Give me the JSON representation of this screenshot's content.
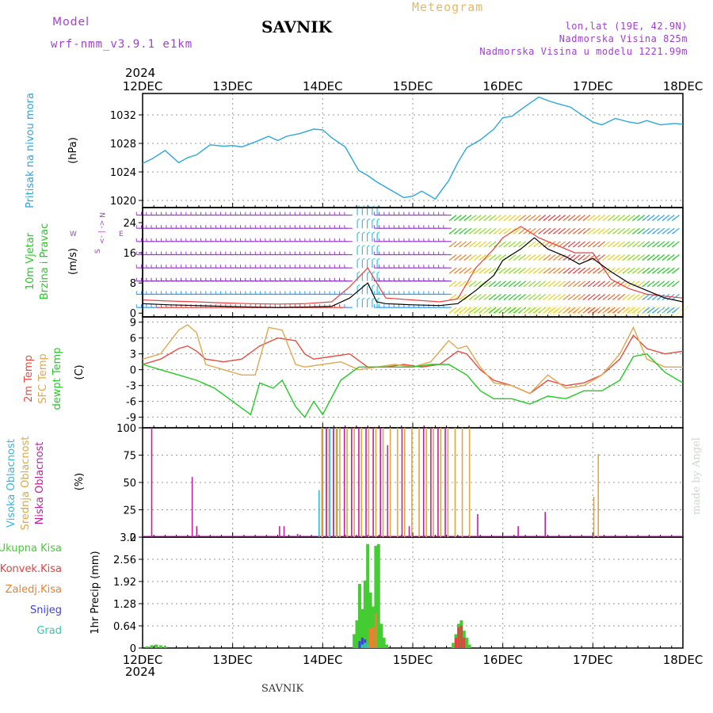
{
  "header": {
    "model_label": "Model",
    "model_version": "wrf-nmm_v3.9.1 e1km",
    "station": "SAVNIK",
    "title": "Meteogram",
    "location_coords": "lon,lat (19E, 42.9N)",
    "elevation": "Nadmorska Visina 825m",
    "model_elevation": "Nadmorska Visina u modelu 1221.99m"
  },
  "footer": {
    "station": "SAVNIK"
  },
  "watermark": "made by Angel",
  "time_axis": {
    "year_top": "2024",
    "year_bottom": "2024",
    "ticks": [
      "12DEC",
      "13DEC",
      "14DEC",
      "15DEC",
      "16DEC",
      "17DEC",
      "18DEC"
    ]
  },
  "colors": {
    "pressure": "#2aa6e0",
    "temp2m": "#e84c40",
    "sfc_temp": "#e0a850",
    "dewpoint": "#22cc22",
    "high_cloud": "#30b8e8",
    "mid_cloud": "#e0a840",
    "low_cloud": "#c020a0",
    "total_precip": "#44cc33",
    "conv_precip": "#e84040",
    "frz_precip": "#f08030",
    "snow": "#4040e0",
    "graupel": "#30c8b0",
    "wind_purple": "#a040d0"
  },
  "chart_data": [
    {
      "type": "line",
      "panel": "pressure",
      "ylabel_left": "Pritisak na nivou mora",
      "unit": "(hPa)",
      "ylim": [
        1019,
        1035
      ],
      "yticks": [
        "1020",
        "1024",
        "1028",
        "1032"
      ],
      "grid": true,
      "series": [
        {
          "name": "Pritisak na nivou mora",
          "x": [
            0,
            0.1,
            0.25,
            0.4,
            0.5,
            0.6,
            0.75,
            0.9,
            1.0,
            1.1,
            1.25,
            1.4,
            1.5,
            1.6,
            1.75,
            1.9,
            2.0,
            2.1,
            2.25,
            2.4,
            2.5,
            2.6,
            2.75,
            2.9,
            3.0,
            3.1,
            3.25,
            3.4,
            3.5,
            3.6,
            3.75,
            3.9,
            4.0,
            4.1,
            4.25,
            4.4,
            4.5,
            4.6,
            4.75,
            4.9,
            5.0,
            5.1,
            5.25,
            5.4,
            5.5,
            5.6,
            5.75,
            5.9,
            6.0
          ],
          "values": [
            1025.2,
            1025.8,
            1027.0,
            1025.3,
            1026.0,
            1026.4,
            1027.8,
            1027.6,
            1027.7,
            1027.5,
            1028.2,
            1029.0,
            1028.4,
            1029.0,
            1029.4,
            1030.0,
            1029.9,
            1028.8,
            1027.5,
            1024.2,
            1023.5,
            1022.6,
            1021.5,
            1020.4,
            1020.6,
            1021.3,
            1020.2,
            1022.8,
            1025.3,
            1027.4,
            1028.5,
            1030.0,
            1031.6,
            1031.8,
            1033.2,
            1034.5,
            1034.0,
            1033.6,
            1033.1,
            1031.8,
            1031.0,
            1030.6,
            1031.5,
            1031.0,
            1030.8,
            1031.2,
            1030.6,
            1030.8,
            1030.7
          ]
        }
      ]
    },
    {
      "type": "line",
      "panel": "wind",
      "ylabel_left": [
        "10m Vjetar",
        "Brzina i Pravac"
      ],
      "unit": "(m/s)",
      "compass": {
        "north": "N",
        "south": "S",
        "west": "W",
        "east": "E"
      },
      "ylim": [
        -1,
        28
      ],
      "yticks": [
        "0",
        "8",
        "16",
        "24"
      ],
      "series": [
        {
          "name": "Brzina",
          "x": [
            0,
            0.3,
            0.6,
            0.9,
            1.2,
            1.5,
            1.8,
            2.1,
            2.3,
            2.5,
            2.6,
            2.7,
            3.0,
            3.3,
            3.5,
            3.7,
            3.9,
            4.0,
            4.2,
            4.35,
            4.5,
            4.7,
            4.85,
            5.0,
            5.2,
            5.4,
            5.6,
            5.8,
            6.0
          ],
          "values": [
            2.5,
            2.2,
            2.0,
            1.8,
            1.6,
            1.5,
            1.6,
            1.8,
            4.0,
            8.0,
            3.0,
            2.5,
            2.2,
            2.0,
            2.5,
            6.0,
            10.0,
            14.0,
            17.0,
            20.0,
            17.0,
            15.0,
            13.0,
            14.5,
            11.0,
            8.0,
            6.0,
            4.0,
            3.0
          ]
        },
        {
          "name": "Udari",
          "x": [
            0,
            0.3,
            0.6,
            0.9,
            1.2,
            1.5,
            1.8,
            2.1,
            2.3,
            2.5,
            2.7,
            3.0,
            3.3,
            3.5,
            3.7,
            3.9,
            4.0,
            4.2,
            4.4,
            4.6,
            4.8,
            5.0,
            5.2,
            5.4,
            5.6,
            5.8,
            6.0
          ],
          "values": [
            3.5,
            3.2,
            3.0,
            2.7,
            2.5,
            2.4,
            2.5,
            3.0,
            7.0,
            12.0,
            4.0,
            3.5,
            3.0,
            3.8,
            12.0,
            17.0,
            20.0,
            23.0,
            20.0,
            18.0,
            16.0,
            16.0,
            9.0,
            6.5,
            5.0,
            4.5,
            4.0
          ]
        }
      ]
    },
    {
      "type": "line",
      "panel": "temperature",
      "ylabel_left": [
        "2m Temp",
        "SFC Temp",
        "dewpt Temp"
      ],
      "unit": "(C)",
      "ylim": [
        -11,
        10
      ],
      "yticks": [
        "-9",
        "-6",
        "-3",
        "0",
        "3",
        "6",
        "9"
      ],
      "grid": true,
      "series": [
        {
          "name": "2m Temp",
          "x": [
            0,
            0.2,
            0.4,
            0.5,
            0.6,
            0.7,
            0.9,
            1.1,
            1.3,
            1.5,
            1.7,
            1.8,
            1.9,
            2.1,
            2.3,
            2.5,
            2.7,
            2.9,
            3.1,
            3.3,
            3.5,
            3.6,
            3.75,
            3.9,
            4.1,
            4.3,
            4.5,
            4.7,
            4.9,
            5.1,
            5.3,
            5.45,
            5.6,
            5.8,
            6.0
          ],
          "values": [
            1.0,
            2.0,
            4.0,
            4.5,
            3.5,
            2.0,
            1.5,
            2.0,
            4.5,
            6.0,
            5.5,
            3.0,
            2.0,
            2.5,
            3.0,
            0.5,
            0.5,
            1.0,
            0.5,
            1.0,
            3.5,
            3.0,
            0.0,
            -2.0,
            -3.0,
            -4.5,
            -2.0,
            -3.0,
            -2.5,
            -1.0,
            2.0,
            6.5,
            4.0,
            3.0,
            3.5
          ]
        },
        {
          "name": "SFC Temp",
          "x": [
            0,
            0.2,
            0.4,
            0.5,
            0.6,
            0.7,
            0.9,
            1.1,
            1.25,
            1.4,
            1.55,
            1.7,
            1.8,
            2.0,
            2.2,
            2.4,
            2.6,
            2.8,
            3.0,
            3.2,
            3.4,
            3.5,
            3.6,
            3.75,
            3.9,
            4.1,
            4.3,
            4.5,
            4.7,
            4.9,
            5.1,
            5.3,
            5.45,
            5.6,
            5.8,
            6.0
          ],
          "values": [
            2.0,
            3.0,
            7.5,
            8.5,
            7.0,
            1.0,
            0.0,
            -1.0,
            -1.0,
            8.0,
            7.5,
            1.0,
            0.5,
            1.0,
            1.5,
            0.0,
            0.5,
            1.0,
            0.5,
            1.5,
            5.5,
            4.0,
            4.5,
            0.5,
            -2.5,
            -3.0,
            -4.5,
            -1.0,
            -3.5,
            -3.0,
            -1.0,
            3.0,
            8.0,
            2.0,
            0.5,
            0.5
          ]
        },
        {
          "name": "dewpt Temp",
          "x": [
            0,
            0.2,
            0.4,
            0.6,
            0.8,
            1.0,
            1.2,
            1.3,
            1.45,
            1.55,
            1.7,
            1.8,
            1.9,
            2.0,
            2.2,
            2.4,
            2.6,
            2.8,
            3.0,
            3.2,
            3.4,
            3.6,
            3.75,
            3.9,
            4.1,
            4.3,
            4.5,
            4.7,
            4.9,
            5.1,
            5.3,
            5.45,
            5.6,
            5.8,
            6.0
          ],
          "values": [
            1.0,
            0.0,
            -1.0,
            -2.0,
            -3.5,
            -6.0,
            -8.5,
            -2.5,
            -3.5,
            -2.0,
            -7.0,
            -9.0,
            -6.0,
            -8.5,
            -2.0,
            0.5,
            0.5,
            0.5,
            0.5,
            1.0,
            1.0,
            -1.0,
            -4.0,
            -5.5,
            -5.5,
            -6.5,
            -5.0,
            -5.5,
            -4.0,
            -4.0,
            -2.0,
            2.5,
            3.0,
            -0.5,
            -2.5
          ]
        }
      ]
    },
    {
      "type": "bar",
      "panel": "cloudiness",
      "ylabel_left": [
        "Visoka Oblacnost",
        "Srednja Oblacnost",
        "Niska Oblacnost"
      ],
      "unit": "(%)",
      "ylim": [
        0,
        100
      ],
      "yticks": [
        "0",
        "25",
        "50",
        "75",
        "100"
      ],
      "grid": true,
      "series": [
        {
          "name": "Visoka Oblacnost",
          "x": [
            1.96,
            2.0,
            2.04,
            2.08,
            2.12,
            2.16
          ],
          "values": [
            43,
            100,
            100,
            100,
            100,
            100
          ]
        },
        {
          "name": "Srednja Oblacnost",
          "x": [
            1.98,
            2.06,
            2.14,
            2.18,
            2.26,
            2.34,
            2.42,
            2.5,
            2.58,
            2.66,
            2.74,
            2.82,
            2.9,
            2.98,
            3.06,
            3.14,
            3.22,
            3.3,
            3.38,
            3.46,
            3.54,
            3.62,
            5.0,
            5.05
          ],
          "values": [
            100,
            100,
            100,
            100,
            100,
            100,
            100,
            100,
            100,
            100,
            100,
            100,
            100,
            100,
            100,
            100,
            100,
            100,
            100,
            100,
            100,
            100,
            37,
            76
          ]
        },
        {
          "name": "Niska Oblacnost",
          "x": [
            0.08,
            0.53,
            0.58,
            1.5,
            1.55,
            1.7,
            2.02,
            2.1,
            2.22,
            2.3,
            2.38,
            2.46,
            2.54,
            2.62,
            2.7,
            2.86,
            2.94,
            3.1,
            3.18,
            3.26,
            3.34,
            3.7,
            4.15,
            4.45
          ],
          "values": [
            100,
            55,
            10,
            10,
            10,
            3,
            100,
            100,
            100,
            100,
            100,
            100,
            100,
            100,
            84,
            100,
            10,
            100,
            100,
            100,
            100,
            21,
            10,
            23
          ]
        }
      ]
    },
    {
      "type": "bar",
      "panel": "precipitation",
      "ylabel_left": [
        "Ukupna Kisa",
        "Konvek.Kisa",
        "Zaledj.Kisa",
        "Snijeg",
        "Grad"
      ],
      "unit": "1hr Precip (mm)",
      "ylim": [
        0,
        3.2
      ],
      "yticks": [
        "0",
        "0.64",
        "1.28",
        "1.92",
        "2.56",
        "3.2"
      ],
      "grid": true,
      "series": [
        {
          "name": "Ukupna Kisa",
          "x": [
            0.05,
            0.1,
            0.15,
            0.2,
            0.25,
            2.35,
            2.38,
            2.41,
            2.44,
            2.47,
            2.5,
            2.53,
            2.56,
            2.59,
            2.62,
            2.65,
            2.68,
            2.71,
            3.45,
            3.48,
            3.51,
            3.54,
            3.57,
            3.6,
            3.63
          ],
          "values": [
            0.05,
            0.08,
            0.1,
            0.08,
            0.05,
            0.4,
            0.8,
            1.85,
            1.12,
            1.95,
            3.0,
            1.6,
            1.2,
            2.95,
            3.0,
            0.7,
            0.3,
            0.1,
            0.15,
            0.4,
            0.7,
            0.8,
            0.5,
            0.3,
            0.1
          ]
        },
        {
          "name": "Konvek.Kisa",
          "x": [
            3.48,
            3.51,
            3.54,
            3.57
          ],
          "values": [
            0.3,
            0.6,
            0.65,
            0.3
          ]
        },
        {
          "name": "Zaledj.Kisa",
          "x": [
            2.53,
            2.56,
            2.59
          ],
          "values": [
            0.55,
            0.6,
            1.0
          ]
        },
        {
          "name": "Snijeg",
          "x": [
            2.41,
            2.44,
            2.47
          ],
          "values": [
            0.2,
            0.3,
            0.25
          ]
        },
        {
          "name": "Grad",
          "x": [
            2.44,
            2.47,
            2.5
          ],
          "values": [
            0.1,
            0.15,
            0.1
          ]
        }
      ]
    }
  ]
}
